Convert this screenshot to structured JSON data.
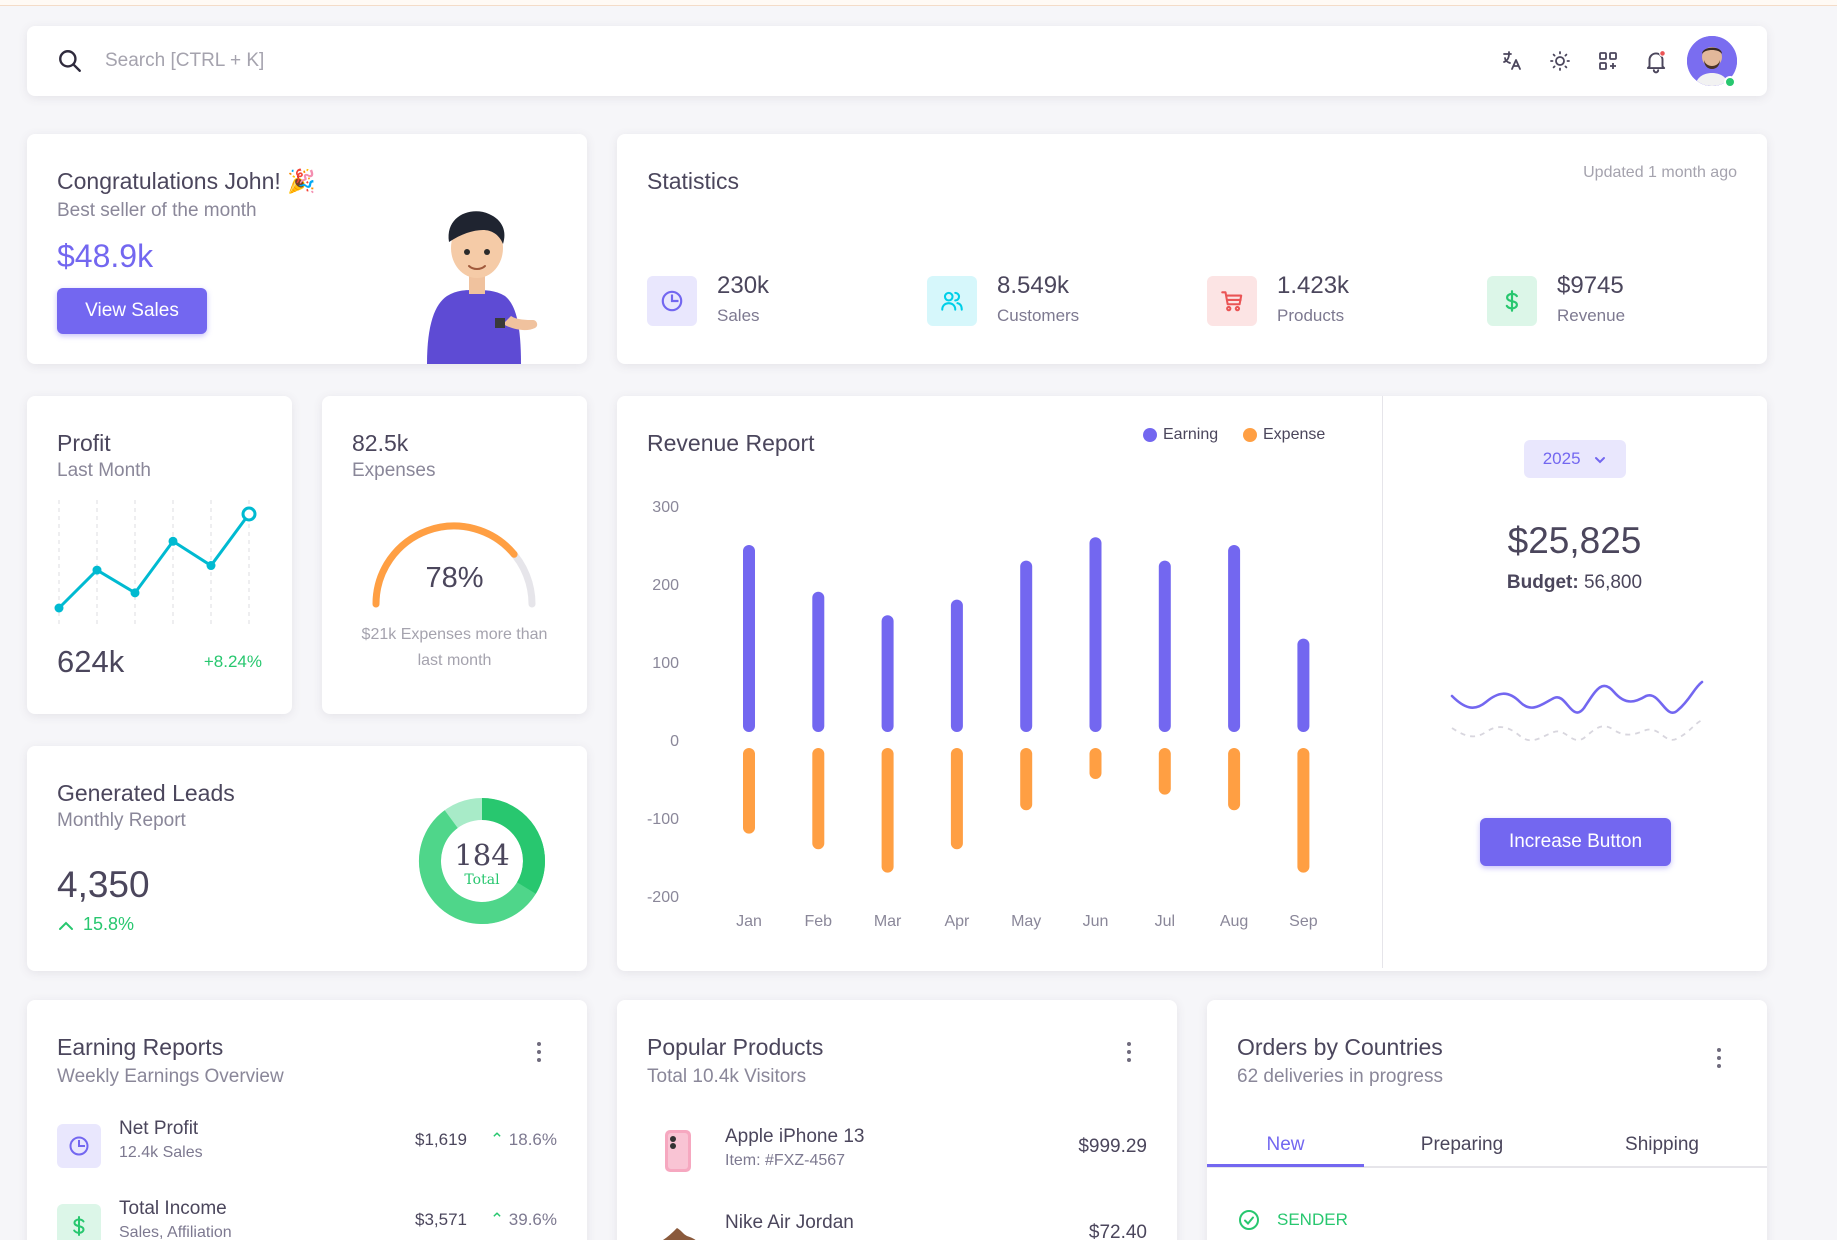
{
  "navbar": {
    "search_placeholder": "Search [CTRL + K]",
    "icons": [
      "search-icon",
      "translate-icon",
      "sun-icon",
      "apps-icon",
      "bell-icon"
    ],
    "notification_badge": true
  },
  "congrats": {
    "title": "Congratulations John! 🎉",
    "subtitle": "Best seller of the month",
    "amount": "$48.9k",
    "button": "View Sales"
  },
  "statistics": {
    "title": "Statistics",
    "updated": "Updated 1 month ago",
    "items": [
      {
        "value": "230k",
        "label": "Sales",
        "icon": "pie-chart-icon",
        "color": "#7367f0",
        "bg": "#e9e7fd"
      },
      {
        "value": "8.549k",
        "label": "Customers",
        "icon": "users-icon",
        "color": "#00cfe8",
        "bg": "#d6f7fb"
      },
      {
        "value": "1.423k",
        "label": "Products",
        "icon": "cart-icon",
        "color": "#ea5455",
        "bg": "#fce4e4"
      },
      {
        "value": "$9745",
        "label": "Revenue",
        "icon": "dollar-icon",
        "color": "#28c76f",
        "bg": "#dcf6e8"
      }
    ]
  },
  "profit": {
    "title": "Profit",
    "subtitle": "Last Month",
    "value": "624k",
    "change": "+8.24%",
    "series": [
      0,
      25,
      10,
      44,
      28,
      62
    ]
  },
  "expenses": {
    "value": "82.5k",
    "label": "Expenses",
    "percent": "78%",
    "percent_value": 78,
    "note": "$21k Expenses more than last month"
  },
  "leads": {
    "title": "Generated Leads",
    "subtitle": "Monthly Report",
    "value": "4,350",
    "change": "15.8%",
    "donut_total": "184",
    "donut_label": "Total"
  },
  "revenue": {
    "title": "Revenue Report",
    "legend_earning": "Earning",
    "legend_expense": "Expense",
    "year": "2025",
    "amount": "$25,825",
    "budget_label": "Budget:",
    "budget_value": "56,800",
    "button": "Increase Button"
  },
  "chart_data": {
    "type": "bar",
    "title": "Revenue Report",
    "categories": [
      "Jan",
      "Feb",
      "Mar",
      "Apr",
      "May",
      "Jun",
      "Jul",
      "Aug",
      "Sep"
    ],
    "series": [
      {
        "name": "Earning",
        "color": "#7367f0",
        "values": [
          250,
          190,
          160,
          180,
          230,
          260,
          230,
          250,
          130
        ]
      },
      {
        "name": "Expense",
        "color": "#ff9f43",
        "values": [
          -120,
          -140,
          -170,
          -140,
          -90,
          -50,
          -70,
          -90,
          -170
        ]
      }
    ],
    "yticks": [
      300,
      200,
      100,
      0,
      -100,
      -200
    ],
    "ylim": [
      -200,
      300
    ]
  },
  "earning_reports": {
    "title": "Earning Reports",
    "subtitle": "Weekly Earnings Overview",
    "rows": [
      {
        "name": "Net Profit",
        "sub": "12.4k Sales",
        "amount": "$1,619",
        "change": "18.6%",
        "icon": "pie-chart-icon",
        "color": "#7367f0",
        "bg": "#e9e7fd"
      },
      {
        "name": "Total Income",
        "sub": "Sales, Affiliation",
        "amount": "$3,571",
        "change": "39.6%",
        "icon": "dollar-icon",
        "color": "#28c76f",
        "bg": "#dcf6e8"
      }
    ]
  },
  "popular_products": {
    "title": "Popular Products",
    "subtitle": "Total 10.4k Visitors",
    "rows": [
      {
        "name": "Apple iPhone 13",
        "sub": "Item: #FXZ-4567",
        "price": "$999.29"
      },
      {
        "name": "Nike Air Jordan",
        "sub": "",
        "price": "$72.40"
      }
    ]
  },
  "orders": {
    "title": "Orders by Countries",
    "subtitle": "62 deliveries in progress",
    "tabs": [
      "New",
      "Preparing",
      "Shipping"
    ],
    "first_label": "SENDER"
  }
}
